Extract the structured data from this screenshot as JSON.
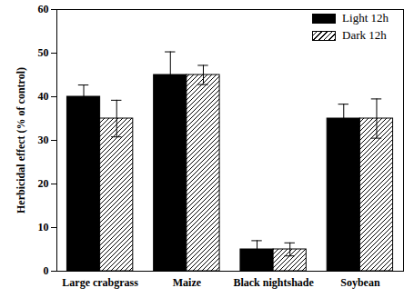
{
  "chart_data": {
    "type": "bar",
    "categories": [
      "Large crabgrass",
      "Maize",
      "Black nightshade",
      "Soybean"
    ],
    "series": [
      {
        "name": "Light 12h",
        "color": "#000000",
        "values": [
          40,
          45,
          5,
          35
        ],
        "errors": [
          2.7,
          5.3,
          2,
          3.3
        ]
      },
      {
        "name": "Dark 12h",
        "color": "#ffffff",
        "values": [
          35,
          45,
          5,
          35
        ],
        "errors": [
          4.2,
          2.2,
          1.5,
          4.5
        ]
      }
    ],
    "y_label": "Herbicidal effect (% of control)",
    "ylim": [
      0,
      60
    ],
    "yticks": [
      0,
      10,
      20,
      30,
      40,
      50,
      60
    ],
    "legend": "top-right",
    "grid": false
  }
}
